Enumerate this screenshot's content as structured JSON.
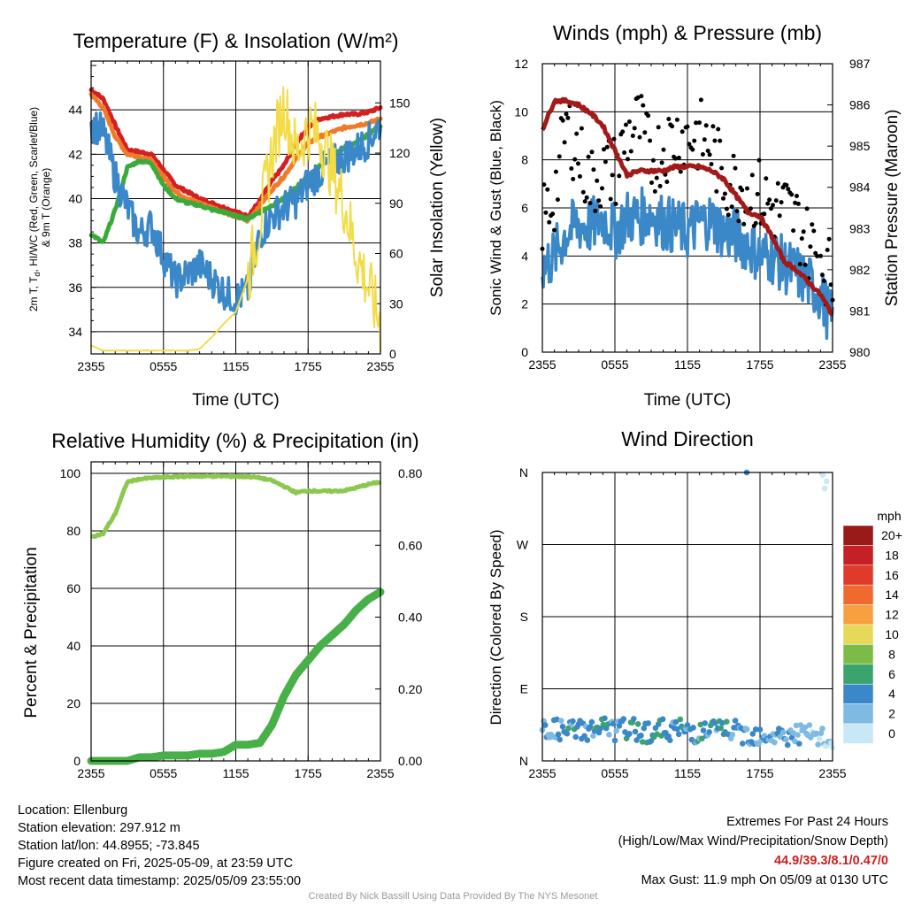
{
  "footer": {
    "location": "Location: Ellenburg",
    "elevation": "Station elevation: 297.912 m",
    "latlon": "Station lat/lon: 44.8955; -73.845",
    "created": "Figure created on Fri, 2025-05-09, at 23:59 UTC",
    "recent": "Most recent data timestamp: 2025/05/09 23:55:00",
    "extremes_title": "Extremes For Past 24 Hours",
    "extremes_subtitle": "(High/Low/Max Wind/Precipitation/Snow Depth)",
    "extremes_values": "44.9/39.3/8.1/0.47/0",
    "max_gust": "Max Gust: 11.9 mph On 05/09 at 0130 UTC",
    "credit": "Created By Nick Bassill Using Data Provided By The NYS Mesonet"
  },
  "chart_data": [
    {
      "type": "line",
      "title": "Temperature (F) & Insolation (W/m²)",
      "xlabel": "Time (UTC)",
      "ylabel": "2m T, T_d, HI/WC (Red, Green, Scarlet/Blue) & 9m T (Orange)",
      "ylabel_lines": [
        "2m T, T",
        "d",
        ", HI/WC (Red, Green, Scarlet/Blue)",
        "& 9m T (Orange)"
      ],
      "y2label": "Solar Insolation (Yellow)",
      "x_ticks": [
        "2355",
        "0555",
        "1155",
        "1755",
        "2355"
      ],
      "ylim": [
        33,
        46.2
      ],
      "y_ticks": [
        34,
        36,
        38,
        40,
        42,
        44
      ],
      "y2lim": [
        0,
        175
      ],
      "y2_ticks": [
        0,
        30,
        60,
        90,
        120,
        150
      ],
      "x_hours": [
        0,
        1,
        2,
        3,
        4,
        5,
        6,
        7,
        8,
        9,
        10,
        11,
        12,
        13,
        14,
        15,
        16,
        17,
        18,
        19,
        20,
        21,
        22,
        23,
        24
      ],
      "series": [
        {
          "name": "2m T",
          "color": "#d42020",
          "axis": "left",
          "values": [
            44.9,
            44.5,
            43.3,
            42.2,
            42.1,
            42.0,
            41.3,
            40.6,
            40.3,
            40.0,
            39.8,
            39.6,
            39.4,
            39.2,
            39.9,
            40.8,
            41.5,
            42.5,
            43.2,
            43.6,
            43.7,
            43.8,
            43.8,
            43.9,
            44.1
          ]
        },
        {
          "name": "9m T",
          "color": "#f07a2a",
          "axis": "left",
          "values": [
            44.7,
            44.1,
            42.8,
            42.0,
            41.9,
            41.7,
            41.0,
            40.3,
            40.0,
            39.8,
            39.6,
            39.4,
            39.2,
            39.0,
            39.7,
            40.4,
            41.0,
            41.8,
            42.5,
            42.8,
            43.0,
            43.2,
            43.3,
            43.4,
            43.6
          ]
        },
        {
          "name": "T_d",
          "color": "#3aaa3a",
          "axis": "left",
          "values": [
            38.4,
            38.0,
            39.5,
            41.4,
            41.7,
            41.6,
            40.6,
            40.0,
            39.8,
            39.7,
            39.5,
            39.4,
            39.2,
            39.1,
            39.4,
            39.7,
            40.0,
            40.5,
            41.0,
            41.5,
            41.9,
            42.3,
            42.5,
            42.9,
            43.3
          ]
        },
        {
          "name": "HI/WC",
          "color": "#3b88c8",
          "axis": "left",
          "values": [
            43.4,
            43.0,
            41.0,
            39.6,
            38.4,
            38.8,
            37.4,
            36.3,
            36.6,
            37.0,
            36.4,
            35.8,
            35.5,
            35.8,
            38.4,
            39.2,
            39.6,
            39.9,
            40.7,
            41.2,
            41.6,
            41.9,
            42.2,
            42.6,
            43.4
          ]
        },
        {
          "name": "Solar Insolation",
          "color": "#f2dc48",
          "axis": "right",
          "values": [
            5,
            2,
            2,
            2,
            2,
            2,
            2,
            2,
            2,
            3,
            10,
            18,
            25,
            45,
            80,
            120,
            150,
            120,
            135,
            130,
            110,
            90,
            60,
            40,
            18
          ]
        }
      ]
    },
    {
      "type": "scatter",
      "title": "Winds (mph) & Pressure (mb)",
      "xlabel": "Time (UTC)",
      "ylabel": "Sonic Wind & Gust (Blue, Black)",
      "y2label": "Station Pressure (Maroon)",
      "x_ticks": [
        "2355",
        "0555",
        "1155",
        "1755",
        "2355"
      ],
      "ylim": [
        0,
        12
      ],
      "y_ticks": [
        0,
        2,
        4,
        6,
        8,
        10,
        12
      ],
      "y2lim": [
        980,
        987
      ],
      "y2_ticks": [
        980,
        981,
        982,
        983,
        984,
        985,
        986,
        987
      ],
      "x_hours": [
        0,
        1,
        2,
        3,
        4,
        5,
        6,
        7,
        8,
        9,
        10,
        11,
        12,
        13,
        14,
        15,
        16,
        17,
        18,
        19,
        20,
        21,
        22,
        23,
        24
      ],
      "series": [
        {
          "name": "Sonic Wind",
          "color": "#3b88c8",
          "axis": "left",
          "values": [
            3.5,
            4.0,
            5.0,
            5.3,
            5.2,
            5.6,
            5.0,
            5.6,
            5.6,
            5.8,
            5.4,
            5.2,
            5.0,
            5.4,
            5.5,
            5.0,
            4.8,
            4.5,
            4.0,
            4.0,
            3.6,
            3.3,
            2.9,
            2.4,
            1.2
          ]
        },
        {
          "name": "Gust",
          "color": "#000000",
          "axis": "left",
          "values": [
            5.5,
            6.5,
            9.5,
            8.2,
            7.0,
            7.5,
            7.5,
            9.0,
            9.5,
            8.0,
            8.5,
            9.0,
            9.0,
            9.0,
            8.5,
            7.2,
            7.0,
            6.8,
            6.5,
            6.0,
            6.0,
            5.5,
            4.5,
            4.0,
            3.0
          ]
        },
        {
          "name": "Station Pressure",
          "color": "#a31a1a",
          "axis": "right",
          "values": [
            985.4,
            986.1,
            986.1,
            986.0,
            985.8,
            985.5,
            984.9,
            984.3,
            984.4,
            984.4,
            984.4,
            984.5,
            984.5,
            984.5,
            984.4,
            984.2,
            983.8,
            983.4,
            983.3,
            982.8,
            982.2,
            982.0,
            981.7,
            981.4,
            980.9
          ]
        }
      ]
    },
    {
      "type": "line",
      "title": "Relative Humidity (%) & Precipitation (in)",
      "ylabel": "Percent & Precipitation",
      "x_ticks": [
        "2355",
        "0555",
        "1155",
        "1755",
        "2355"
      ],
      "ylim": [
        0,
        104
      ],
      "y_ticks": [
        0,
        20,
        40,
        60,
        80,
        100
      ],
      "y2lim": [
        0,
        0.832
      ],
      "y2_ticks": [
        "0.00",
        "0.20",
        "0.40",
        "0.60",
        "0.80"
      ],
      "x_hours": [
        0,
        1,
        2,
        3,
        4,
        5,
        6,
        7,
        8,
        9,
        10,
        11,
        12,
        13,
        14,
        15,
        16,
        17,
        18,
        19,
        20,
        21,
        22,
        23,
        24
      ],
      "series": [
        {
          "name": "Relative Humidity",
          "color": "#8cc850",
          "axis": "left",
          "values": [
            78,
            79,
            86,
            97,
            98,
            98.4,
            98.6,
            98.8,
            99.0,
            99.0,
            99.0,
            99.0,
            98.9,
            98.9,
            98.4,
            97.5,
            95.5,
            93.3,
            94.0,
            93.8,
            93.8,
            94.0,
            95.0,
            96.2,
            97.0
          ]
        },
        {
          "name": "Precipitation",
          "color": "#48b048",
          "axis": "right",
          "values": [
            0.0,
            0.0,
            0.0,
            0.0,
            0.01,
            0.01,
            0.015,
            0.015,
            0.015,
            0.02,
            0.02,
            0.025,
            0.045,
            0.045,
            0.05,
            0.1,
            0.18,
            0.24,
            0.28,
            0.32,
            0.35,
            0.38,
            0.42,
            0.45,
            0.47
          ]
        }
      ]
    },
    {
      "type": "scatter",
      "title": "Wind Direction",
      "ylabel": "Direction (Colored By Speed)",
      "x_ticks": [
        "2355",
        "0555",
        "1155",
        "1755",
        "2355"
      ],
      "y_ticks": [
        "N",
        "E",
        "S",
        "W",
        "N"
      ],
      "ylim": [
        0,
        360
      ],
      "x_hours": [
        0,
        1,
        2,
        3,
        4,
        5,
        6,
        7,
        8,
        9,
        10,
        11,
        12,
        13,
        14,
        15,
        16,
        17,
        18,
        19,
        20,
        21,
        22,
        23,
        24
      ],
      "series": [
        {
          "name": "Direction",
          "values": [
            38,
            40,
            36,
            40,
            38,
            42,
            37,
            40,
            38,
            36,
            39,
            40,
            38,
            35,
            38,
            40,
            36,
            33,
            34,
            32,
            30,
            34,
            32,
            28,
            22
          ]
        },
        {
          "name": "Speed (mph)",
          "values": [
            3.5,
            4.0,
            5.0,
            5.3,
            5.2,
            5.6,
            5.0,
            5.6,
            5.6,
            5.8,
            5.4,
            5.2,
            5.0,
            5.4,
            5.5,
            5.0,
            4.8,
            4.5,
            4.0,
            4.0,
            3.6,
            3.3,
            2.9,
            2.4,
            1.2
          ]
        }
      ],
      "extra_points": [
        {
          "hour": 16.9,
          "direction": 360,
          "speed": 4
        },
        {
          "hour": 23.2,
          "direction": 357,
          "speed": 1
        },
        {
          "hour": 23.35,
          "direction": 340,
          "speed": 1
        },
        {
          "hour": 23.5,
          "direction": 349,
          "speed": 1
        }
      ],
      "legend": {
        "title": "mph",
        "labels": [
          "20+",
          "18",
          "16",
          "14",
          "12",
          "10",
          "8",
          "6",
          "4",
          "2",
          "0"
        ],
        "colors": [
          "#9a1a1a",
          "#c42025",
          "#df3a2a",
          "#f06a30",
          "#f8a040",
          "#e6d95a",
          "#7cbb48",
          "#3aa36e",
          "#3b88c8",
          "#7ebae2",
          "#c8e8f8"
        ]
      }
    }
  ]
}
